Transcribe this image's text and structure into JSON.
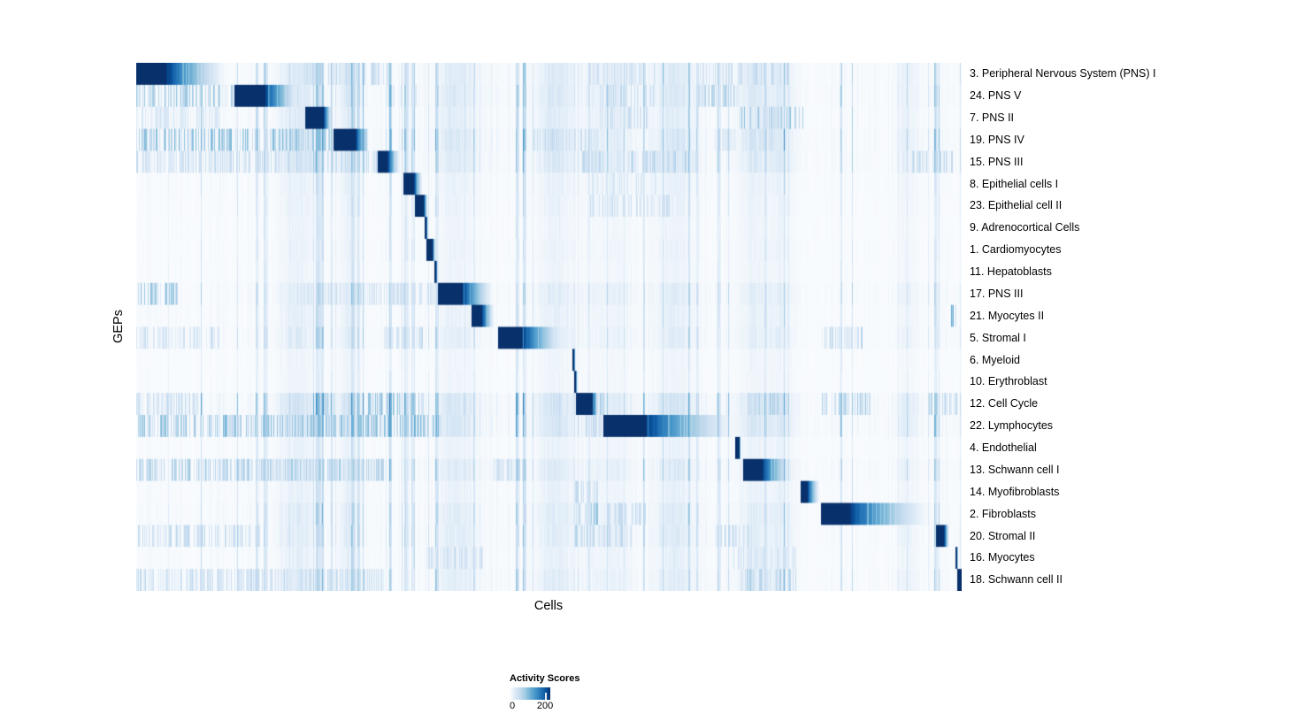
{
  "figure": {
    "title": "",
    "xlabel": "Cells",
    "ylabel": "GEPs"
  },
  "legend": {
    "title": "Activity Scores",
    "min_label": "0",
    "tick_label": "200",
    "tick_position": 0.87
  },
  "colors": {
    "page_background": "#ffffff",
    "heatmap_low": "#ffffff",
    "heatmap_high": "#08306b",
    "colormap_stops": [
      [
        0.0,
        "#ffffff"
      ],
      [
        0.13,
        "#deebf7"
      ],
      [
        0.26,
        "#c6dbef"
      ],
      [
        0.39,
        "#9ecae1"
      ],
      [
        0.52,
        "#6baed6"
      ],
      [
        0.65,
        "#4292c6"
      ],
      [
        0.78,
        "#2171b5"
      ],
      [
        0.9,
        "#08519c"
      ],
      [
        1.0,
        "#08306b"
      ]
    ]
  },
  "chart_data": {
    "type": "heatmap",
    "title": "",
    "xlabel": "Cells",
    "ylabel": "GEPs",
    "legend_title": "Activity Scores",
    "colorscale": {
      "min": 0,
      "tick": 200,
      "max": 230,
      "palette": "white-to-navy Blues"
    },
    "description": "GEP x Cells activity-score heatmap; cells are ordered by cluster so each GEP shows a dark diagonal block (activity ~200+) that fades rightward, over sparse light-blue vertical background striping.",
    "n_rows": 24,
    "rows": [
      {
        "label": "3. Peripheral Nervous System (PNS) I",
        "block": {
          "start": 0.0,
          "dark_end": 0.0364,
          "fade_end": 0.114
        },
        "noise_level": 0.9,
        "noise_bands": [
          [
            0.2,
            0.31,
            0.3
          ],
          [
            0.55,
            0.63,
            0.25
          ],
          [
            0.68,
            0.79,
            0.3
          ]
        ]
      },
      {
        "label": "24. PNS V",
        "block": {
          "start": 0.119,
          "dark_end": 0.1565,
          "fade_end": 0.2026
        },
        "noise_level": 1.0,
        "noise_bands": [
          [
            0.0,
            0.13,
            0.45
          ],
          [
            0.3,
            0.34,
            0.2
          ],
          [
            0.56,
            0.63,
            0.3
          ],
          [
            0.68,
            0.73,
            0.35
          ]
        ]
      },
      {
        "label": "7. PNS II",
        "block": {
          "start": 0.2047,
          "dark_end": 0.2272,
          "fade_end": 0.238
        },
        "noise_level": 0.8,
        "noise_bands": [
          [
            0.0,
            0.1,
            0.2
          ],
          [
            0.56,
            0.62,
            0.25
          ],
          [
            0.73,
            0.81,
            0.45
          ]
        ]
      },
      {
        "label": "19. PNS IV",
        "block": {
          "start": 0.239,
          "dark_end": 0.2658,
          "fade_end": 0.283
        },
        "noise_level": 1.1,
        "noise_bands": [
          [
            0.0,
            0.28,
            0.5
          ],
          [
            0.48,
            0.56,
            0.3
          ],
          [
            0.7,
            0.78,
            0.25
          ]
        ]
      },
      {
        "label": "15. PNS III",
        "block": {
          "start": 0.2926,
          "dark_end": 0.3044,
          "fade_end": 0.3205
        },
        "noise_level": 1.0,
        "noise_bands": [
          [
            0.0,
            0.3,
            0.3
          ],
          [
            0.54,
            0.68,
            0.35
          ],
          [
            0.94,
            0.99,
            0.3
          ]
        ]
      },
      {
        "label": "8. Epithelial cells I",
        "block": {
          "start": 0.3237,
          "dark_end": 0.3366,
          "fade_end": 0.3473
        },
        "noise_level": 0.55,
        "noise_bands": [
          [
            0.55,
            0.63,
            0.2
          ]
        ]
      },
      {
        "label": "23. Epithelial cell II",
        "block": {
          "start": 0.3376,
          "dark_end": 0.3483,
          "fade_end": 0.3537
        },
        "noise_level": 0.5,
        "noise_bands": [
          [
            0.55,
            0.65,
            0.25
          ]
        ]
      },
      {
        "label": "9. Adrenocortical Cells",
        "block": {
          "start": 0.3494,
          "dark_end": 0.3516,
          "fade_end": 0.3537
        },
        "noise_level": 0.4,
        "noise_bands": []
      },
      {
        "label": "1. Cardiomyocytes",
        "block": {
          "start": 0.3516,
          "dark_end": 0.3591,
          "fade_end": 0.3634
        },
        "noise_level": 0.45,
        "noise_bands": []
      },
      {
        "label": "11. Hepatoblasts",
        "block": {
          "start": 0.3612,
          "dark_end": 0.3634,
          "fade_end": 0.3655
        },
        "noise_level": 0.4,
        "noise_bands": []
      },
      {
        "label": "17. PNS III",
        "block": {
          "start": 0.3655,
          "dark_end": 0.3955,
          "fade_end": 0.4352
        },
        "noise_level": 0.8,
        "noise_bands": [
          [
            0.0,
            0.05,
            0.55
          ],
          [
            0.2,
            0.4,
            0.25
          ]
        ]
      },
      {
        "label": "21. Myocytes II",
        "block": {
          "start": 0.4062,
          "dark_end": 0.4191,
          "fade_end": 0.4352
        },
        "noise_level": 0.6,
        "noise_bands": [
          [
            0.988,
            0.994,
            0.6
          ]
        ]
      },
      {
        "label": "5. Stromal I",
        "block": {
          "start": 0.4384,
          "dark_end": 0.4673,
          "fade_end": 0.5241
        },
        "noise_level": 0.75,
        "noise_bands": [
          [
            0.0,
            0.1,
            0.25
          ],
          [
            0.3,
            0.35,
            0.3
          ],
          [
            0.83,
            0.88,
            0.35
          ]
        ]
      },
      {
        "label": "6. Myeloid",
        "block": {
          "start": 0.5284,
          "dark_end": 0.5305,
          "fade_end": 0.5327
        },
        "noise_level": 0.35,
        "noise_bands": []
      },
      {
        "label": "10. Erythroblast",
        "block": {
          "start": 0.5305,
          "dark_end": 0.5327,
          "fade_end": 0.5348
        },
        "noise_level": 0.35,
        "noise_bands": []
      },
      {
        "label": "12. Cell Cycle",
        "block": {
          "start": 0.5327,
          "dark_end": 0.5531,
          "fade_end": 0.5617
        },
        "noise_level": 1.3,
        "noise_bands": [
          [
            0.0,
            0.08,
            0.3
          ],
          [
            0.21,
            0.24,
            0.35
          ],
          [
            0.28,
            0.35,
            0.45
          ],
          [
            0.55,
            0.57,
            0.5
          ],
          [
            0.74,
            0.79,
            0.4
          ],
          [
            0.83,
            0.89,
            0.45
          ],
          [
            0.96,
            0.995,
            0.4
          ]
        ]
      },
      {
        "label": "22. Lymphocytes",
        "block": {
          "start": 0.5659,
          "dark_end": 0.6174,
          "fade_end": 0.7331
        },
        "noise_level": 1.2,
        "noise_bands": [
          [
            0.0,
            0.37,
            0.5
          ],
          [
            0.54,
            0.57,
            0.3
          ]
        ]
      },
      {
        "label": "4. Endothelial",
        "block": {
          "start": 0.7256,
          "dark_end": 0.731,
          "fade_end": 0.7331
        },
        "noise_level": 0.5,
        "noise_bands": []
      },
      {
        "label": "13. Schwann cell I",
        "block": {
          "start": 0.7353,
          "dark_end": 0.7588,
          "fade_end": 0.7974
        },
        "noise_level": 0.9,
        "noise_bands": [
          [
            0.0,
            0.3,
            0.4
          ],
          [
            0.43,
            0.47,
            0.3
          ]
        ]
      },
      {
        "label": "14. Myofibroblasts",
        "block": {
          "start": 0.8049,
          "dark_end": 0.8135,
          "fade_end": 0.8296
        },
        "noise_level": 0.55,
        "noise_bands": [
          [
            0.53,
            0.56,
            0.3
          ]
        ]
      },
      {
        "label": "2. Fibroblasts",
        "block": {
          "start": 0.8296,
          "dark_end": 0.8639,
          "fade_end": 0.9679
        },
        "noise_level": 0.8,
        "noise_bands": [
          [
            0.53,
            0.56,
            0.55
          ],
          [
            0.57,
            0.62,
            0.3
          ]
        ]
      },
      {
        "label": "20. Stromal II",
        "block": {
          "start": 0.9689,
          "dark_end": 0.9796,
          "fade_end": 0.986
        },
        "noise_level": 0.8,
        "noise_bands": [
          [
            0.0,
            0.15,
            0.3
          ],
          [
            0.53,
            0.6,
            0.35
          ],
          [
            0.7,
            0.75,
            0.3
          ]
        ]
      },
      {
        "label": "16. Myocytes",
        "block": {
          "start": 0.9925,
          "dark_end": 0.9946,
          "fade_end": 0.9968
        },
        "noise_level": 0.6,
        "noise_bands": [
          [
            0.35,
            0.42,
            0.3
          ],
          [
            0.72,
            0.8,
            0.25
          ]
        ]
      },
      {
        "label": "18. Schwann cell II",
        "block": {
          "start": 0.9957,
          "dark_end": 1.0,
          "fade_end": 1.0
        },
        "noise_level": 0.8,
        "noise_bands": [
          [
            0.0,
            0.3,
            0.3
          ],
          [
            0.73,
            0.8,
            0.35
          ]
        ]
      }
    ]
  }
}
